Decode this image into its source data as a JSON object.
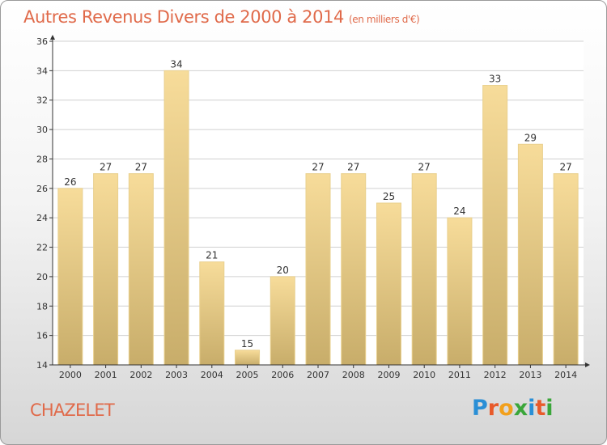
{
  "title": "Autres Revenus Divers de 2000 à 2014",
  "subtitle": "(en milliers d'€)",
  "commune": "CHAZELET",
  "logo": {
    "text": "Proxiti",
    "letters": [
      {
        "char": "P",
        "color": "#2a8fd6"
      },
      {
        "char": "r",
        "color": "#e85a2a"
      },
      {
        "char": "o",
        "color": "#f2a01c"
      },
      {
        "char": "x",
        "color": "#3aa63a"
      },
      {
        "char": "i",
        "color": "#2a8fd6"
      },
      {
        "char": "t",
        "color": "#e85a2a"
      },
      {
        "char": "i",
        "color": "#3aa63a"
      }
    ]
  },
  "colors": {
    "title": "#e06a4a",
    "bar_top": "#f7dc9a",
    "bar_bottom": "#c8ad6a",
    "axis": "#333333",
    "grid": "#d0d0d0"
  },
  "chart_data": {
    "type": "bar",
    "categories": [
      "2000",
      "2001",
      "2002",
      "2003",
      "2004",
      "2005",
      "2006",
      "2007",
      "2008",
      "2009",
      "2010",
      "2011",
      "2012",
      "2013",
      "2014"
    ],
    "values": [
      26,
      27,
      27,
      34,
      21,
      15,
      20,
      27,
      27,
      25,
      27,
      24,
      33,
      29,
      27
    ],
    "title": "Autres Revenus Divers de 2000 à 2014",
    "subtitle": "(en milliers d'€)",
    "xlabel": "",
    "ylabel": "",
    "ylim": [
      14,
      36
    ],
    "yticks": [
      14,
      16,
      18,
      20,
      22,
      24,
      26,
      28,
      30,
      32,
      34,
      36
    ],
    "grid": true,
    "data_labels": true
  }
}
